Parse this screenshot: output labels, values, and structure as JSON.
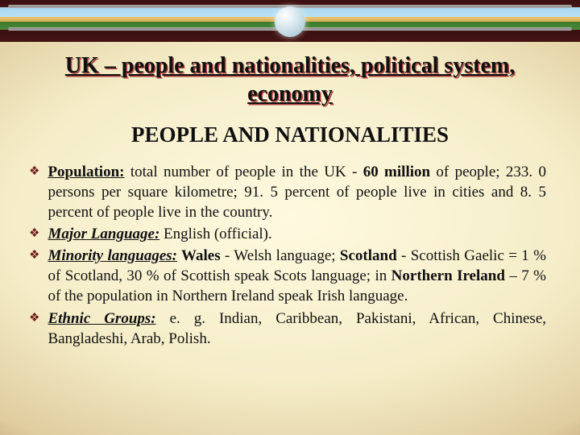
{
  "title": "UK – people and nationalities, political system, economy",
  "section_heading": "PEOPLE AND NATIONALITIES",
  "bullets": {
    "pop": {
      "label": "Population:",
      "t1": " total number of people in the UK - ",
      "b1": "60 million",
      "t2": " of people; 233. 0 persons per square kilometre; 91. 5 percent of people live in cities and 8. 5 percent of people live in the country."
    },
    "lang": {
      "label": "Major Language:",
      "t1": " English (official)."
    },
    "minor": {
      "label": "Minority languages:",
      "b1": " Wales",
      "t1": " - Welsh language; ",
      "b2": "Scotland",
      "t2": " - Scottish Gaelic = 1 % of Scotland, 30 % of Scottish speak Scots language; in ",
      "b3": "Northern Ireland",
      "t3": " – 7 % of the population in Northern Ireland speak Irish language."
    },
    "ethnic": {
      "label": "Ethnic Groups:",
      "t1": " e. g. Indian, Caribbean, Pakistani, African, Chinese, Bangladeshi, Arab, Polish."
    }
  },
  "style": {
    "bullet_glyph": "❖"
  }
}
